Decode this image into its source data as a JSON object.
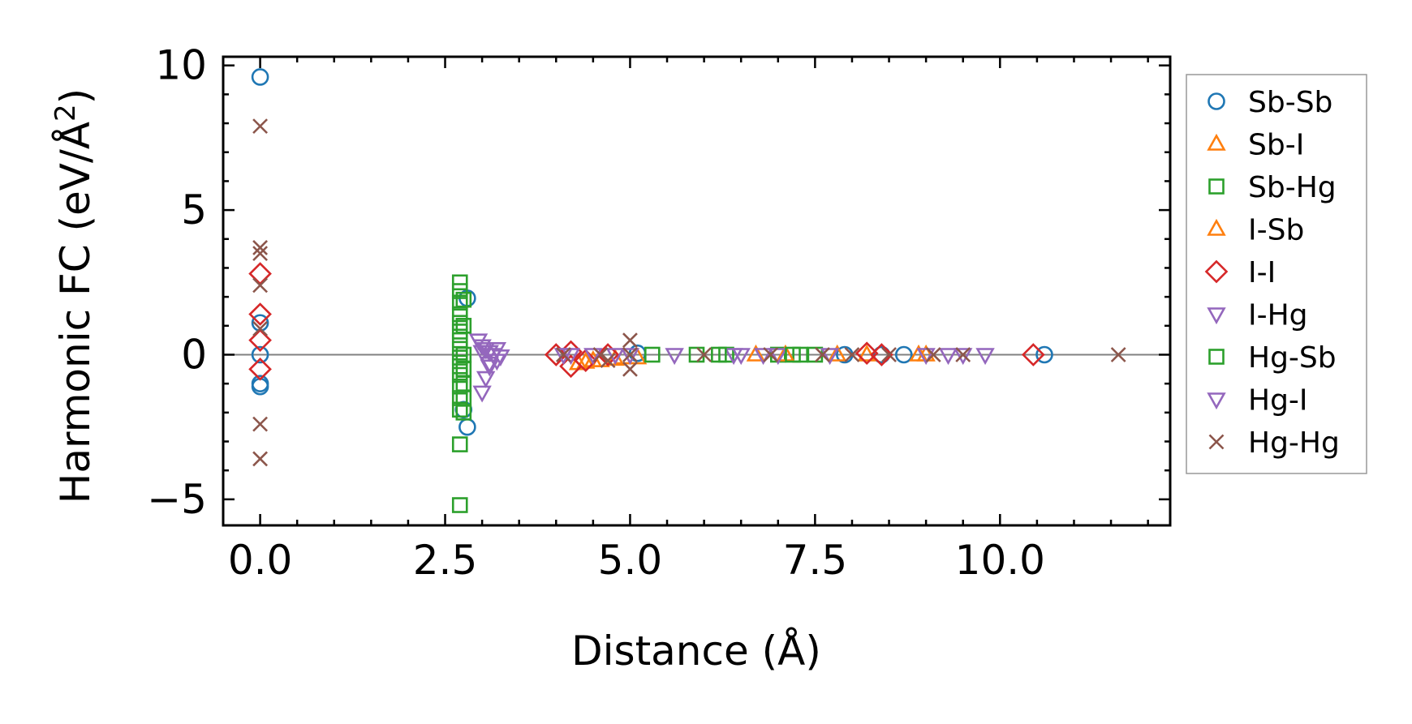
{
  "chart_data": {
    "type": "scatter",
    "title": "",
    "xlabel": "Distance (Å)",
    "ylabel_prefix": "Harmonic FC (eV/Å",
    "ylabel_sup": "2",
    "ylabel_suffix": ")",
    "xlim": [
      -0.5,
      12.3
    ],
    "ylim": [
      -5.9,
      10.3
    ],
    "xticks": [
      0.0,
      2.5,
      5.0,
      7.5,
      10.0
    ],
    "xtick_labels": [
      "0.0",
      "2.5",
      "5.0",
      "7.5",
      "10.0"
    ],
    "yticks": [
      -5,
      0,
      5,
      10
    ],
    "ytick_labels": [
      "−5",
      "0",
      "5",
      "10"
    ],
    "zero_line": true,
    "legend_position": "outside-right",
    "series": [
      {
        "name": "Sb-Sb",
        "marker": "circle",
        "color": "#1f77b4",
        "x": [
          0.0,
          0.0,
          0.0,
          0.0,
          0.0,
          2.8,
          2.8,
          2.75,
          5.1,
          7.9,
          8.4,
          8.7,
          10.6
        ],
        "y": [
          9.6,
          1.1,
          0.0,
          -1.0,
          -1.1,
          1.95,
          -2.5,
          -1.9,
          0.05,
          0.0,
          0.0,
          0.0,
          0.0
        ]
      },
      {
        "name": "Sb-I",
        "marker": "triangle-up",
        "color": "#ff7f0e",
        "x": [
          4.3,
          4.5,
          4.8,
          5.1,
          6.7,
          8.2,
          8.9
        ],
        "y": [
          -0.3,
          -0.2,
          -0.15,
          -0.1,
          0.0,
          0.0,
          0.0
        ]
      },
      {
        "name": "Sb-Hg",
        "marker": "square",
        "color": "#2ca02c",
        "x": [
          2.7,
          2.7,
          2.7,
          2.7,
          2.7,
          2.7,
          2.7,
          2.7,
          2.7,
          2.7,
          2.7,
          2.7,
          2.7,
          2.7,
          2.7,
          2.7,
          5.3,
          5.9,
          6.3,
          7.0,
          7.3,
          7.5
        ],
        "y": [
          2.5,
          2.2,
          1.8,
          1.4,
          1.1,
          0.8,
          0.5,
          0.2,
          -0.1,
          -0.4,
          -0.7,
          -1.1,
          -1.5,
          -1.9,
          -3.1,
          -5.2,
          0.0,
          0.0,
          0.0,
          0.0,
          0.0,
          0.0
        ]
      },
      {
        "name": "I-Sb",
        "marker": "triangle-up",
        "color": "#ff7f0e",
        "x": [
          4.4,
          4.6,
          4.9,
          7.1,
          7.8,
          9.0
        ],
        "y": [
          -0.25,
          -0.2,
          -0.1,
          0.0,
          0.0,
          0.0
        ]
      },
      {
        "name": "I-I",
        "marker": "diamond",
        "color": "#d62728",
        "x": [
          0.0,
          0.0,
          0.0,
          0.0,
          4.0,
          4.2,
          4.2,
          4.4,
          4.7,
          8.2,
          8.4,
          10.45
        ],
        "y": [
          2.8,
          1.4,
          0.5,
          -0.5,
          0.0,
          -0.4,
          0.1,
          -0.2,
          0.0,
          0.05,
          0.0,
          0.0
        ]
      },
      {
        "name": "I-Hg",
        "marker": "triangle-down",
        "color": "#9467bd",
        "x": [
          2.95,
          3.0,
          3.05,
          3.1,
          3.15,
          3.2,
          3.0,
          3.05,
          3.1,
          4.2,
          4.8,
          5.0,
          6.4,
          6.8,
          7.0,
          9.3
        ],
        "y": [
          0.5,
          0.3,
          0.2,
          0.1,
          0.0,
          -0.2,
          -1.3,
          -0.8,
          -0.4,
          0.0,
          0.0,
          0.0,
          0.0,
          0.0,
          0.0,
          0.0
        ]
      },
      {
        "name": "Hg-Sb",
        "marker": "square",
        "color": "#2ca02c",
        "x": [
          2.75,
          2.75,
          2.75,
          2.75,
          2.75,
          2.75,
          2.75,
          6.2,
          7.2
        ],
        "y": [
          1.9,
          1.0,
          0.0,
          -0.5,
          -1.0,
          -1.5,
          -2.0,
          0.0,
          0.0
        ]
      },
      {
        "name": "Hg-I",
        "marker": "triangle-down",
        "color": "#9467bd",
        "x": [
          3.0,
          3.1,
          3.2,
          3.25,
          4.1,
          4.5,
          5.6,
          6.5,
          7.7,
          9.0,
          9.5,
          9.8
        ],
        "y": [
          0.1,
          -0.3,
          0.2,
          -0.05,
          0.0,
          0.0,
          0.0,
          0.0,
          0.0,
          0.0,
          0.0,
          0.0
        ]
      },
      {
        "name": "Hg-Hg",
        "marker": "x",
        "color": "#8c564b",
        "x": [
          0.0,
          0.0,
          0.0,
          0.0,
          0.0,
          0.0,
          0.0,
          4.1,
          4.6,
          4.7,
          5.0,
          5.0,
          5.0,
          6.0,
          6.9,
          7.6,
          8.0,
          8.5,
          9.1,
          9.5,
          11.6
        ],
        "y": [
          7.9,
          3.7,
          3.5,
          2.4,
          0.9,
          -2.4,
          -3.6,
          0.0,
          0.0,
          -0.2,
          0.5,
          -0.5,
          0.0,
          0.0,
          0.0,
          0.0,
          0.0,
          0.0,
          0.0,
          0.0,
          0.0
        ]
      }
    ]
  }
}
